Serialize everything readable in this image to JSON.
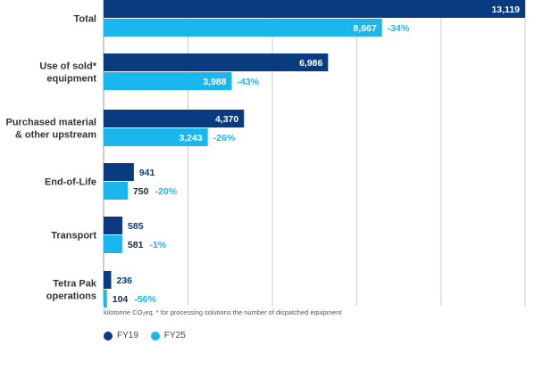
{
  "chart_data": {
    "type": "bar",
    "orientation": "horizontal",
    "categories": [
      [
        "Total"
      ],
      [
        "Use of sold*",
        "equipment"
      ],
      [
        "Purchased material",
        "& other upstream"
      ],
      [
        "End-of-Life"
      ],
      [
        "Transport"
      ],
      [
        "Tetra Pak",
        "operations"
      ]
    ],
    "series": [
      {
        "name": "FY19",
        "color": "#0a3a80",
        "values": [
          13119,
          6986,
          4370,
          941,
          585,
          236
        ],
        "labels": [
          "13,119",
          "6,986",
          "4,370",
          "941",
          "585",
          "236"
        ]
      },
      {
        "name": "FY25",
        "color": "#1ab6ee",
        "values": [
          8667,
          3988,
          3243,
          750,
          581,
          104
        ],
        "labels": [
          "8,667",
          "3,988",
          "3,243",
          "750",
          "581",
          "104"
        ]
      }
    ],
    "changes": [
      "-34%",
      "-43%",
      "-26%",
      "-20%",
      "-1%",
      "-56%"
    ],
    "xlim": [
      0,
      13119
    ],
    "grid": true,
    "footnote": "kilotonne CO₂eq. * for processing solutions the number of dispatched equipment",
    "legend_position": "bottom-left"
  }
}
